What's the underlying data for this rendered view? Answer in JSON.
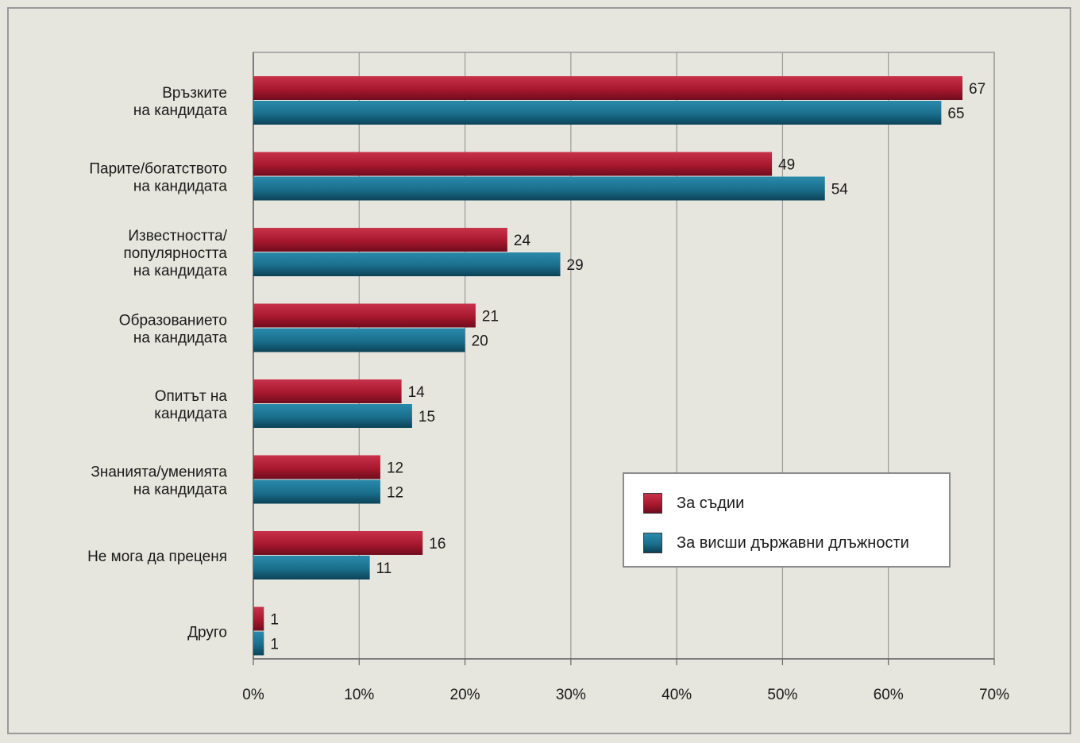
{
  "chart_data": {
    "type": "bar",
    "orientation": "horizontal",
    "categories": [
      "Връзките\nна кандидата",
      "Парите/богатството\nна кандидата",
      "Известността/\nпопулярността\nна кандидата",
      "Образованието\nна кандидата",
      "Опитът на\nкандидата",
      "Знанията/уменията\nна кандидата",
      "Не мога да преценя",
      "Друго"
    ],
    "series": [
      {
        "name": "За съдии",
        "color": "#a8182e",
        "values": [
          67,
          49,
          24,
          21,
          14,
          12,
          16,
          1
        ]
      },
      {
        "name": "За висши държавни длъжности",
        "color": "#1a6e8c",
        "values": [
          65,
          54,
          29,
          20,
          15,
          12,
          11,
          1
        ]
      }
    ],
    "x_ticks": [
      "0%",
      "10%",
      "20%",
      "30%",
      "40%",
      "50%",
      "60%",
      "70%"
    ],
    "xlim": [
      0,
      70
    ],
    "grid": true,
    "legend_position": "bottom-right",
    "title": "",
    "xlabel": "",
    "ylabel": ""
  }
}
